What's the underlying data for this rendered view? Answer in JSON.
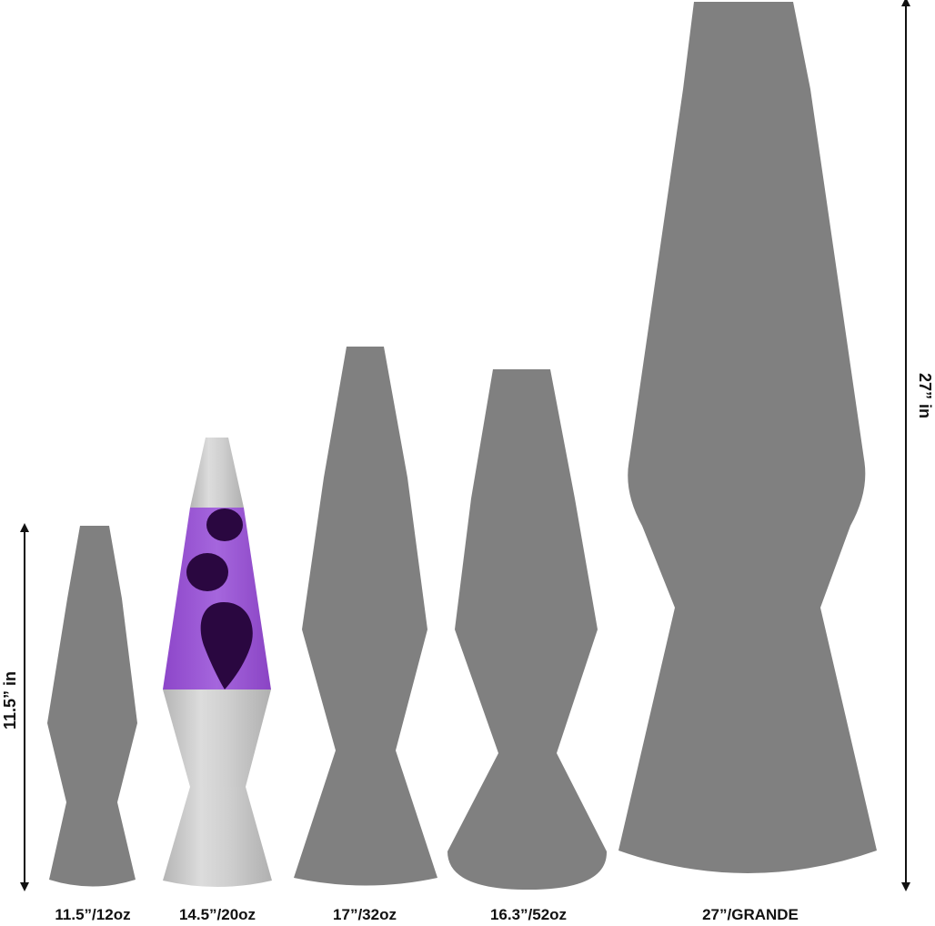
{
  "colors": {
    "silhouette": "#808080",
    "aluminum": "#c4c4c4",
    "aluminum_light": "#d8d8d8",
    "lava_liquid": "#9b59d0",
    "wax": "#2a0740",
    "arrow": "#111111"
  },
  "lamps": [
    {
      "label": "11.5”/12oz",
      "style": "silhouette"
    },
    {
      "label": "14.5”/20oz",
      "style": "purple-lava"
    },
    {
      "label": "17”/32oz",
      "style": "silhouette"
    },
    {
      "label": "16.3”/52oz",
      "style": "silhouette"
    },
    {
      "label": "27”/GRANDE",
      "style": "silhouette"
    }
  ],
  "dimensions": {
    "small_height": "11.5” in",
    "large_height": "27” in"
  },
  "icons": [
    "double-arrow-icon"
  ]
}
